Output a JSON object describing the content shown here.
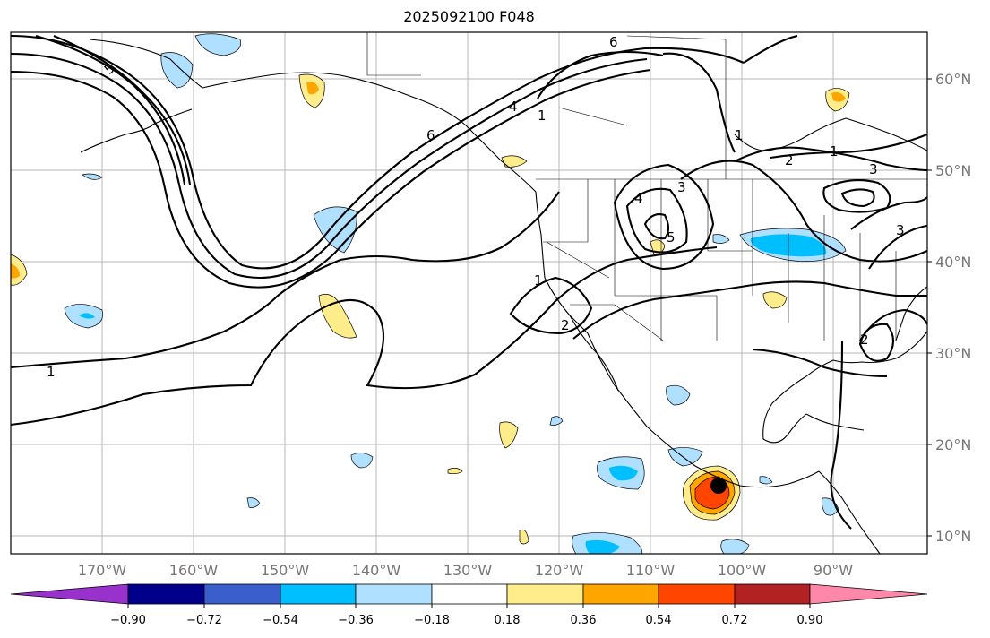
{
  "title": "2025092100 F048",
  "lat_labels": [
    "60°N",
    "50°N",
    "40°N",
    "30°N",
    "20°N",
    "10°N"
  ],
  "lon_labels": [
    "170°W",
    "160°W",
    "150°W",
    "140°W",
    "130°W",
    "120°W",
    "110°W",
    "100°W",
    "90°W"
  ],
  "colorbar": {
    "ticks": [
      "−0.90",
      "−0.72",
      "−0.54",
      "−0.36",
      "−0.18",
      "0.18",
      "0.36",
      "0.54",
      "0.72",
      "0.90"
    ],
    "colors": [
      "#9932cc",
      "#00008b",
      "#3a5fcd",
      "#00bfff",
      "#b0e0ff",
      "#ffffff",
      "#ffec8b",
      "#ffa500",
      "#ff4500",
      "#b22222",
      "#ff88aa"
    ]
  },
  "contour_labels": [
    "5",
    "6",
    "4",
    "1",
    "6",
    "1",
    "3",
    "4",
    "5",
    "1",
    "3",
    "2",
    "1",
    "3",
    "2",
    "2",
    "1"
  ],
  "fill_colors": {
    "light_blue": "#b0e0ff",
    "blue": "#00bfff",
    "yellow": "#ffec8b",
    "orange": "#ffa500",
    "red": "#ff4500"
  }
}
